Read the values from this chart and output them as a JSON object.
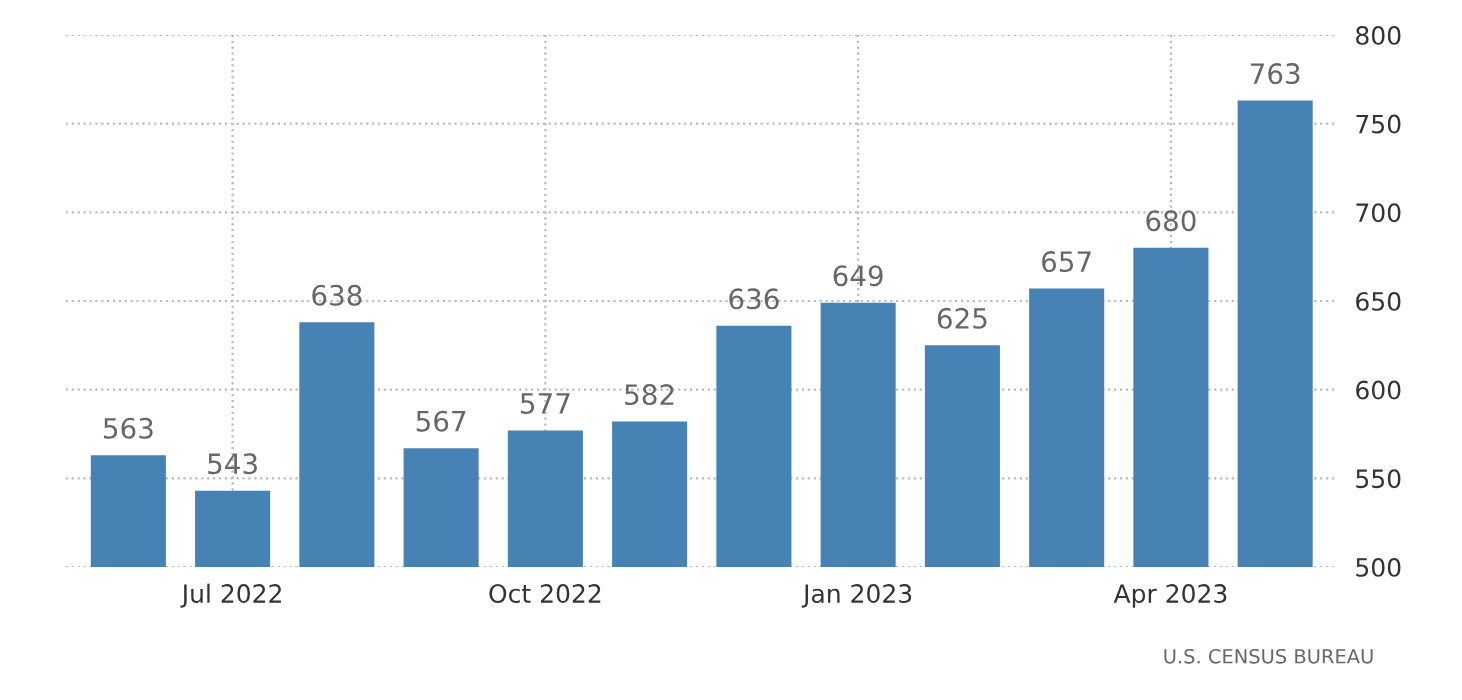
{
  "chart_data": {
    "type": "bar",
    "categories": [
      null,
      "Jul 2022",
      null,
      null,
      "Oct 2022",
      null,
      null,
      "Jan 2023",
      null,
      null,
      "Apr 2023",
      null
    ],
    "values": [
      563,
      543,
      638,
      567,
      577,
      582,
      636,
      649,
      625,
      657,
      680,
      763
    ],
    "color": "#4682b4",
    "ylim": [
      500,
      800
    ],
    "yticks": [
      500,
      550,
      600,
      650,
      700,
      750,
      800
    ],
    "grid": true,
    "data_labels": true,
    "annotations": [
      "U.S. CENSUS BUREAU"
    ]
  }
}
